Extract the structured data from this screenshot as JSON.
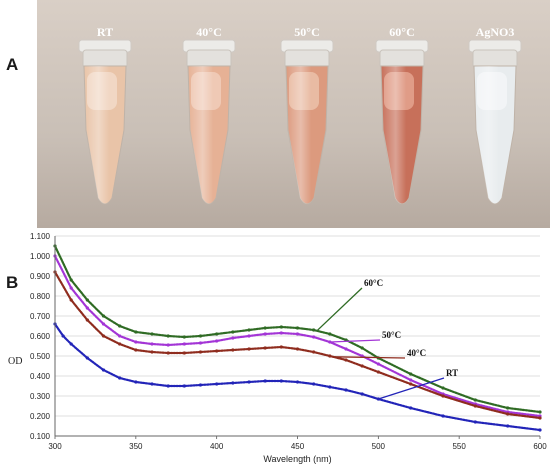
{
  "panels": {
    "a": {
      "label": "A"
    },
    "b": {
      "label": "B"
    }
  },
  "tubes": [
    {
      "label": "RT",
      "liquid": "#e9c4a8",
      "band": "#f3dccb"
    },
    {
      "label": "40°C",
      "liquid": "#e6b195",
      "band": "#f1d0bd"
    },
    {
      "label": "50°C",
      "liquid": "#dc9a7e",
      "band": "#ecc3ad"
    },
    {
      "label": "60°C",
      "liquid": "#c7705a",
      "band": "#e6a792"
    },
    {
      "label": "AgNO3",
      "liquid": "#e8ecee",
      "band": "#f4f6f7"
    }
  ],
  "chart_data": {
    "type": "scatter",
    "xlabel": "Wavelength (nm)",
    "ylabel": "OD",
    "xlim": [
      300,
      600
    ],
    "ylim": [
      0.1,
      1.1
    ],
    "xticks": [
      "300",
      "350",
      "400",
      "450",
      "500",
      "550",
      "600"
    ],
    "yticks": [
      "0.100",
      "0.200",
      "0.300",
      "0.400",
      "0.500",
      "0.600",
      "0.700",
      "0.800",
      "0.900",
      "1.000",
      "1.100"
    ],
    "series": [
      {
        "name": "60°C",
        "color": "#2f6b24",
        "x": [
          300,
          310,
          320,
          330,
          340,
          350,
          360,
          370,
          380,
          390,
          400,
          410,
          420,
          430,
          440,
          450,
          460,
          470,
          480,
          490,
          500,
          520,
          540,
          560,
          580,
          600
        ],
        "y": [
          1.05,
          0.88,
          0.78,
          0.7,
          0.65,
          0.62,
          0.61,
          0.6,
          0.595,
          0.6,
          0.61,
          0.62,
          0.63,
          0.64,
          0.645,
          0.64,
          0.63,
          0.61,
          0.58,
          0.54,
          0.49,
          0.41,
          0.34,
          0.28,
          0.24,
          0.22
        ]
      },
      {
        "name": "50°C",
        "color": "#a335d6",
        "x": [
          300,
          310,
          320,
          330,
          340,
          350,
          360,
          370,
          380,
          390,
          400,
          410,
          420,
          430,
          440,
          450,
          460,
          470,
          480,
          490,
          500,
          520,
          540,
          560,
          580,
          600
        ],
        "y": [
          1.0,
          0.84,
          0.74,
          0.66,
          0.6,
          0.57,
          0.56,
          0.555,
          0.56,
          0.565,
          0.575,
          0.59,
          0.6,
          0.61,
          0.615,
          0.61,
          0.595,
          0.57,
          0.535,
          0.5,
          0.46,
          0.38,
          0.31,
          0.26,
          0.22,
          0.2
        ]
      },
      {
        "name": "40°C",
        "color": "#8f2c1e",
        "x": [
          300,
          310,
          320,
          330,
          340,
          350,
          360,
          370,
          380,
          390,
          400,
          410,
          420,
          430,
          440,
          450,
          460,
          470,
          480,
          490,
          500,
          520,
          540,
          560,
          580,
          600
        ],
        "y": [
          0.92,
          0.78,
          0.68,
          0.6,
          0.56,
          0.53,
          0.52,
          0.515,
          0.515,
          0.52,
          0.525,
          0.53,
          0.535,
          0.54,
          0.545,
          0.535,
          0.52,
          0.5,
          0.48,
          0.45,
          0.42,
          0.36,
          0.3,
          0.25,
          0.21,
          0.19
        ]
      },
      {
        "name": "RT",
        "color": "#2224b8",
        "x": [
          300,
          305,
          310,
          320,
          330,
          340,
          350,
          360,
          370,
          380,
          390,
          400,
          410,
          420,
          430,
          440,
          450,
          460,
          470,
          480,
          490,
          500,
          520,
          540,
          560,
          580,
          600
        ],
        "y": [
          0.66,
          0.6,
          0.56,
          0.49,
          0.43,
          0.39,
          0.37,
          0.36,
          0.35,
          0.35,
          0.355,
          0.36,
          0.365,
          0.37,
          0.375,
          0.375,
          0.37,
          0.36,
          0.345,
          0.33,
          0.31,
          0.285,
          0.24,
          0.2,
          0.17,
          0.15,
          0.13
        ]
      }
    ]
  }
}
